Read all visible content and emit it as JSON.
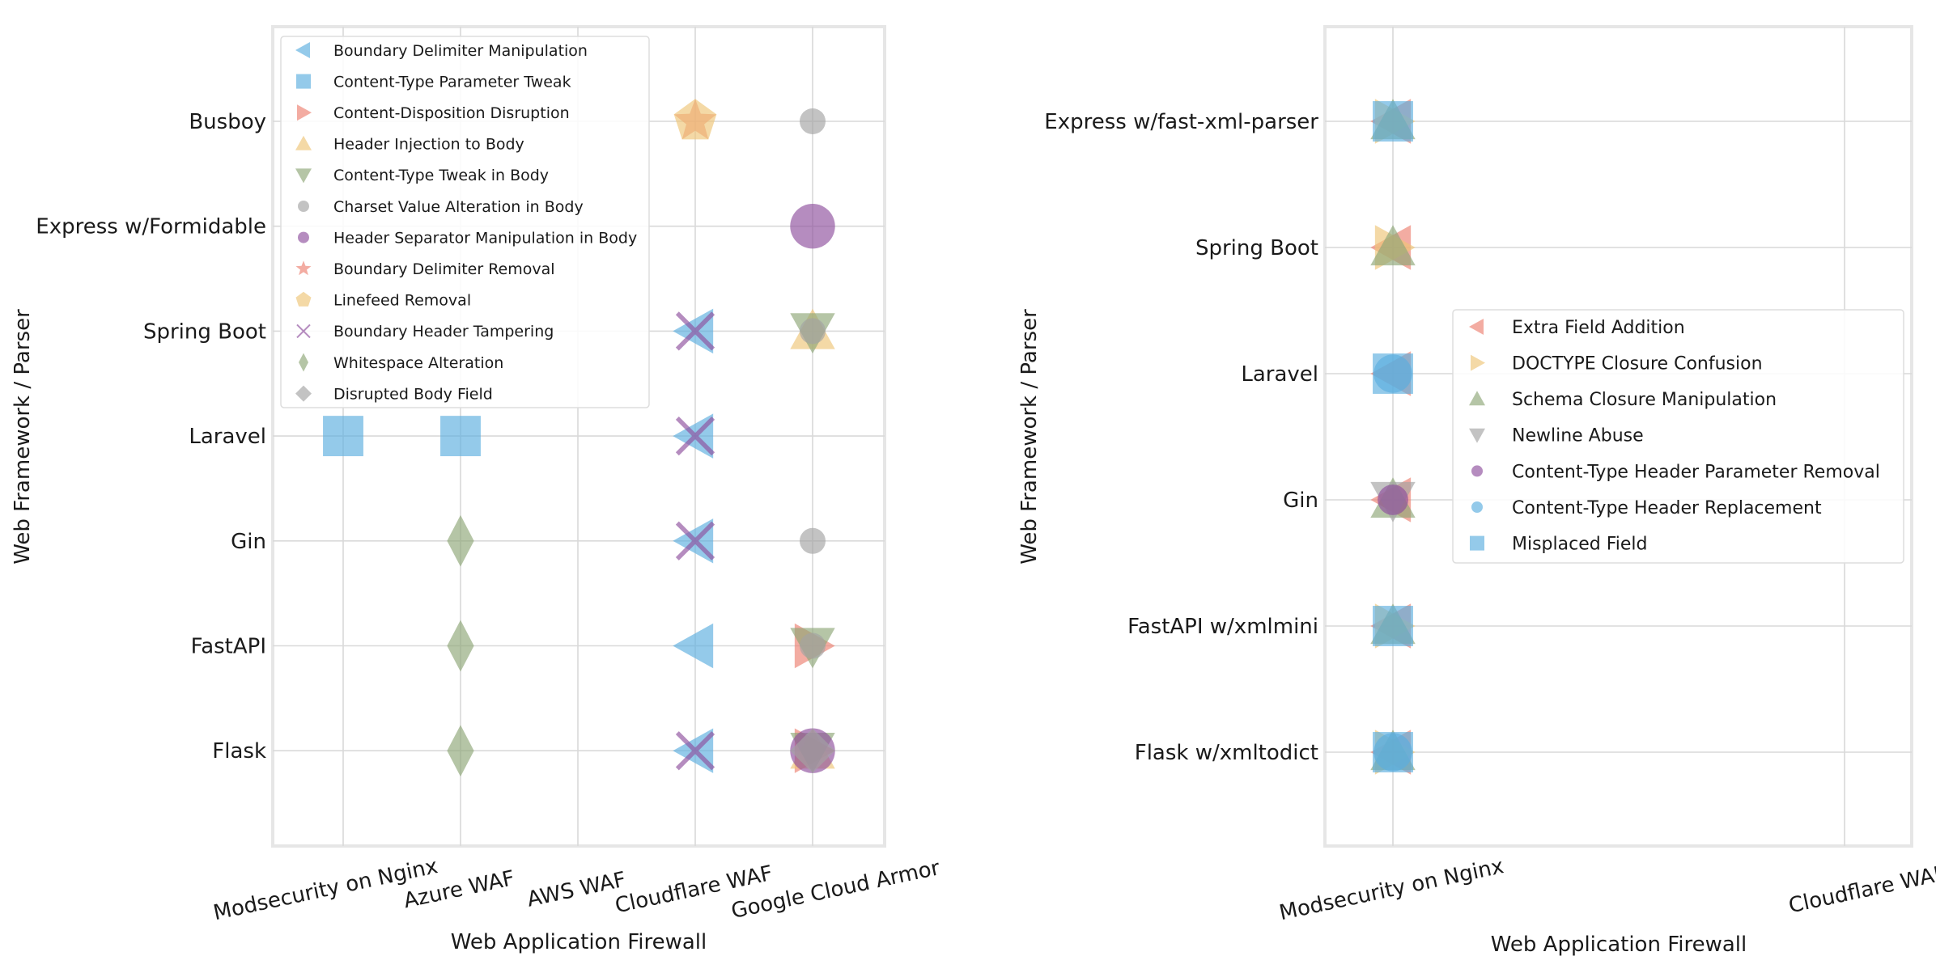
{
  "colors": {
    "blue": "#5aaede",
    "red": "#ec8070",
    "yellow": "#eec577",
    "green": "#8ea676",
    "grey": "#a3a3a3",
    "purple": "#8e4f9c",
    "orange": "#eca24d",
    "grid": "#d9d9d9",
    "frame": "#e6e6e6"
  },
  "chart_data": [
    {
      "type": "scatter",
      "xlabel": "Web Application Firewall",
      "ylabel": "Web Framework / Parser",
      "x_categories": [
        "Modsecurity on Nginx",
        "Azure WAF",
        "AWS WAF",
        "Cloudflare WAF",
        "Google Cloud Armor"
      ],
      "y_categories": [
        "Busboy",
        "Express w/Formidable",
        "Spring Boot",
        "Laravel",
        "Gin",
        "FastAPI",
        "Flask"
      ],
      "legend_position": "upper-left",
      "series": [
        {
          "name": "Boundary Delimiter Manipulation",
          "marker": "triangle-left",
          "color": "#5aaede",
          "points": [
            {
              "x": "Cloudflare WAF",
              "y": "Spring Boot",
              "size": 3
            },
            {
              "x": "Cloudflare WAF",
              "y": "Laravel",
              "size": 3
            },
            {
              "x": "Cloudflare WAF",
              "y": "Gin",
              "size": 3
            },
            {
              "x": "Cloudflare WAF",
              "y": "FastAPI",
              "size": 3
            },
            {
              "x": "Cloudflare WAF",
              "y": "Flask",
              "size": 3
            }
          ]
        },
        {
          "name": "Content-Type Parameter Tweak",
          "marker": "square",
          "color": "#5aaede",
          "points": [
            {
              "x": "Modsecurity on Nginx",
              "y": "Laravel",
              "size": 3
            },
            {
              "x": "Azure WAF",
              "y": "Laravel",
              "size": 3
            }
          ]
        },
        {
          "name": "Content-Disposition Disruption",
          "marker": "triangle-right",
          "color": "#ec8070",
          "points": [
            {
              "x": "Google Cloud Armor",
              "y": "FastAPI",
              "size": 3
            },
            {
              "x": "Google Cloud Armor",
              "y": "Flask",
              "size": 3
            }
          ]
        },
        {
          "name": "Header Injection to Body",
          "marker": "triangle-up",
          "color": "#eec577",
          "points": [
            {
              "x": "Google Cloud Armor",
              "y": "Spring Boot",
              "size": 3
            },
            {
              "x": "Google Cloud Armor",
              "y": "Flask",
              "size": 3
            }
          ]
        },
        {
          "name": "Content-Type Tweak in Body",
          "marker": "triangle-down",
          "color": "#8ea676",
          "points": [
            {
              "x": "Google Cloud Armor",
              "y": "Spring Boot",
              "size": 3
            },
            {
              "x": "Google Cloud Armor",
              "y": "FastAPI",
              "size": 3
            },
            {
              "x": "Google Cloud Armor",
              "y": "Flask",
              "size": 3
            }
          ]
        },
        {
          "name": "Charset Value Alteration in Body",
          "marker": "circle",
          "color": "#a3a3a3",
          "points": [
            {
              "x": "Google Cloud Armor",
              "y": "Busboy",
              "size": 1
            },
            {
              "x": "Google Cloud Armor",
              "y": "Spring Boot",
              "size": 1
            },
            {
              "x": "Google Cloud Armor",
              "y": "Gin",
              "size": 1
            },
            {
              "x": "Google Cloud Armor",
              "y": "FastAPI",
              "size": 1
            }
          ]
        },
        {
          "name": "Header Separator Manipulation in Body",
          "marker": "circle",
          "color": "#8e4f9c",
          "points": [
            {
              "x": "Google Cloud Armor",
              "y": "Express w/Formidable",
              "size": 3
            },
            {
              "x": "Google Cloud Armor",
              "y": "Flask",
              "size": 3
            }
          ]
        },
        {
          "name": "Boundary Delimiter Removal",
          "marker": "star",
          "color": "#ec8070",
          "points": [
            {
              "x": "Cloudflare WAF",
              "y": "Busboy",
              "size": 3
            }
          ]
        },
        {
          "name": "Linefeed Removal",
          "marker": "pentagon",
          "color": "#eec577",
          "points": [
            {
              "x": "Cloudflare WAF",
              "y": "Busboy",
              "size": 3
            }
          ]
        },
        {
          "name": "Boundary Header Tampering",
          "marker": "x",
          "color": "#8e4f9c",
          "points": [
            {
              "x": "Cloudflare WAF",
              "y": "Spring Boot",
              "size": 3
            },
            {
              "x": "Cloudflare WAF",
              "y": "Laravel",
              "size": 3
            },
            {
              "x": "Cloudflare WAF",
              "y": "Gin",
              "size": 3
            },
            {
              "x": "Cloudflare WAF",
              "y": "Flask",
              "size": 3
            }
          ]
        },
        {
          "name": "Whitespace Alteration",
          "marker": "thin-diamond",
          "color": "#8ea676",
          "points": [
            {
              "x": "Azure WAF",
              "y": "Gin",
              "size": 3
            },
            {
              "x": "Azure WAF",
              "y": "FastAPI",
              "size": 3
            },
            {
              "x": "Azure WAF",
              "y": "Flask",
              "size": 3
            }
          ]
        },
        {
          "name": "Disrupted Body Field",
          "marker": "diamond",
          "color": "#a3a3a3",
          "points": [
            {
              "x": "Google Cloud Armor",
              "y": "Flask",
              "size": 3
            }
          ]
        }
      ]
    },
    {
      "type": "scatter",
      "xlabel": "Web Application Firewall",
      "ylabel": "Web Framework / Parser",
      "x_categories": [
        "Modsecurity on Nginx",
        "Cloudflare WAF"
      ],
      "y_categories": [
        "Express w/fast-xml-parser",
        "Spring Boot",
        "Laravel",
        "Gin",
        "FastAPI w/xmlmini",
        "Flask w/xmltodict"
      ],
      "legend_position": "center-right",
      "series": [
        {
          "name": "Extra Field Addition",
          "marker": "triangle-left",
          "color": "#ec8070",
          "points": [
            {
              "x": "Modsecurity on Nginx",
              "y": "Express w/fast-xml-parser",
              "size": 3
            },
            {
              "x": "Modsecurity on Nginx",
              "y": "Spring Boot",
              "size": 3
            },
            {
              "x": "Modsecurity on Nginx",
              "y": "Laravel",
              "size": 3
            },
            {
              "x": "Modsecurity on Nginx",
              "y": "Gin",
              "size": 3
            },
            {
              "x": "Modsecurity on Nginx",
              "y": "FastAPI w/xmlmini",
              "size": 3
            },
            {
              "x": "Modsecurity on Nginx",
              "y": "Flask w/xmltodict",
              "size": 3
            }
          ]
        },
        {
          "name": "DOCTYPE Closure Confusion",
          "marker": "triangle-right",
          "color": "#eec577",
          "points": [
            {
              "x": "Modsecurity on Nginx",
              "y": "Express w/fast-xml-parser",
              "size": 3
            },
            {
              "x": "Modsecurity on Nginx",
              "y": "Spring Boot",
              "size": 3
            },
            {
              "x": "Modsecurity on Nginx",
              "y": "FastAPI w/xmlmini",
              "size": 3
            },
            {
              "x": "Modsecurity on Nginx",
              "y": "Flask w/xmltodict",
              "size": 3
            }
          ]
        },
        {
          "name": "Schema Closure Manipulation",
          "marker": "triangle-up",
          "color": "#8ea676",
          "points": [
            {
              "x": "Modsecurity on Nginx",
              "y": "Express w/fast-xml-parser",
              "size": 3
            },
            {
              "x": "Modsecurity on Nginx",
              "y": "Spring Boot",
              "size": 3
            },
            {
              "x": "Modsecurity on Nginx",
              "y": "Gin",
              "size": 3
            },
            {
              "x": "Modsecurity on Nginx",
              "y": "FastAPI w/xmlmini",
              "size": 3
            },
            {
              "x": "Modsecurity on Nginx",
              "y": "Flask w/xmltodict",
              "size": 3
            }
          ]
        },
        {
          "name": "Newline Abuse",
          "marker": "triangle-down",
          "color": "#a3a3a3",
          "points": [
            {
              "x": "Modsecurity on Nginx",
              "y": "Gin",
              "size": 3
            }
          ]
        },
        {
          "name": "Content-Type Header Parameter Removal",
          "marker": "circle",
          "color": "#8e4f9c",
          "points": [
            {
              "x": "Modsecurity on Nginx",
              "y": "Gin",
              "size": 1.4
            }
          ]
        },
        {
          "name": "Content-Type Header Replacement",
          "marker": "circle",
          "color": "#5aaede",
          "points": [
            {
              "x": "Modsecurity on Nginx",
              "y": "Laravel",
              "size": 2.2
            },
            {
              "x": "Modsecurity on Nginx",
              "y": "Flask w/xmltodict",
              "size": 2.2
            }
          ]
        },
        {
          "name": "Misplaced Field",
          "marker": "square",
          "color": "#5aaede",
          "points": [
            {
              "x": "Modsecurity on Nginx",
              "y": "Express w/fast-xml-parser",
              "size": 3
            },
            {
              "x": "Modsecurity on Nginx",
              "y": "Laravel",
              "size": 3
            },
            {
              "x": "Modsecurity on Nginx",
              "y": "FastAPI w/xmlmini",
              "size": 3
            },
            {
              "x": "Modsecurity on Nginx",
              "y": "Flask w/xmltodict",
              "size": 3
            }
          ]
        }
      ]
    }
  ]
}
